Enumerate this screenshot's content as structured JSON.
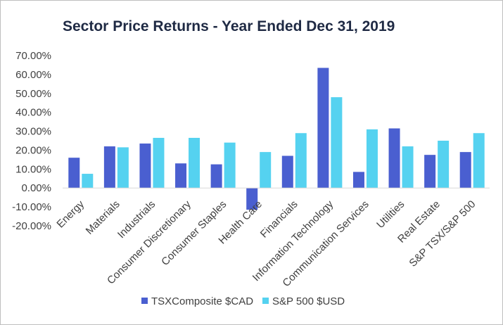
{
  "chart_data": {
    "type": "bar",
    "title": "Sector Price Returns - Year Ended   Dec 31, 2019",
    "xlabel": "",
    "ylabel": "",
    "ylim": [
      -0.2,
      0.7
    ],
    "yticks": [
      "70.00%",
      "60.00%",
      "50.00%",
      "40.00%",
      "30.00%",
      "20.00%",
      "10.00%",
      "0.00%",
      "-10.00%",
      "-20.00%"
    ],
    "grid": false,
    "legend_position": "bottom",
    "categories": [
      "Energy",
      "Materials",
      "Industrials",
      "Consumer Discretionary",
      "Consumer Staples",
      "Health Care",
      "Financials",
      "Information Technology",
      "Communication Services",
      "Utilities",
      "Real Estate",
      "S&P TSX/S&P 500"
    ],
    "series": [
      {
        "name": "TSXComposite $CAD",
        "color": "#4a5fd0",
        "values": [
          0.16,
          0.22,
          0.235,
          0.13,
          0.125,
          -0.115,
          0.17,
          0.635,
          0.085,
          0.315,
          0.175,
          0.19
        ]
      },
      {
        "name": "S&P 500 $USD",
        "color": "#55d2f0",
        "values": [
          0.075,
          0.215,
          0.265,
          0.265,
          0.24,
          0.19,
          0.29,
          0.48,
          0.31,
          0.22,
          0.25,
          0.29
        ]
      }
    ]
  }
}
